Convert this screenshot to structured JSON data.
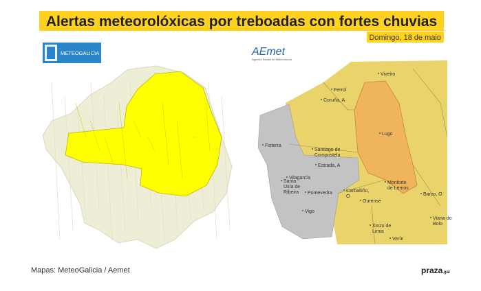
{
  "header": {
    "title": "Alertas meteorolóxicas por treboadas con fortes chuvias",
    "date": "Domingo, 18 de maio"
  },
  "logos": {
    "meteogalicia": "METEOGALICIA",
    "aemet": "AEmet",
    "aemet_subtitle": "Agencia Estatal de Meteorología"
  },
  "cities": [
    [
      "Viveiro"
    ],
    [
      "Ferrol"
    ],
    [
      "Coruña, A"
    ],
    [
      "Lugo"
    ],
    [
      "Fisterra"
    ],
    [
      "Santiago de",
      "Compostela"
    ],
    [
      "Estrada, A"
    ],
    [
      "Vilagarcía"
    ],
    [
      "Santa",
      "Uxía de",
      "Ribeira"
    ],
    [
      "Pontevedra"
    ],
    [
      "Carballiño,",
      "O"
    ],
    [
      "Ourense"
    ],
    [
      "Monforte",
      "de Lemos"
    ],
    [
      "Barco, O"
    ],
    [
      "Viana do",
      "Bolo"
    ],
    [
      "Vigo"
    ],
    [
      "Xinzo de",
      "Limia"
    ],
    [
      "Verín"
    ]
  ],
  "footer": {
    "source": "Mapas: MeteoGalicia / Aemet",
    "brand": "praza",
    "brand_suffix": ".gal"
  }
}
